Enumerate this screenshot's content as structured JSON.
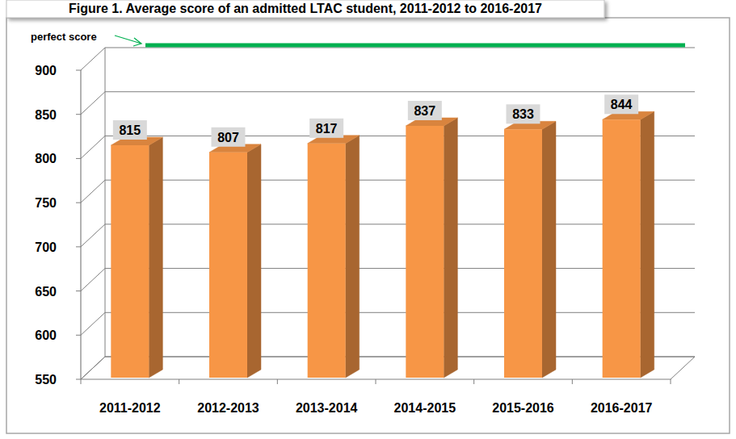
{
  "chart_data": {
    "type": "bar",
    "title": "Figure 1. Average score of an admitted LTAC student, 2011-2012 to 2016-2017",
    "categories": [
      "2011-2012",
      "2012-2013",
      "2013-2014",
      "2014-2015",
      "2015-2016",
      "2016-2017"
    ],
    "values": [
      815,
      807,
      817,
      837,
      833,
      844
    ],
    "color": "#f79646",
    "ylim": [
      550,
      900
    ],
    "yticks": [
      550,
      600,
      650,
      700,
      750,
      800,
      850,
      900
    ],
    "grid": true,
    "data_labels": true,
    "annotations": [
      {
        "text": "perfect score",
        "value": 900
      }
    ]
  }
}
